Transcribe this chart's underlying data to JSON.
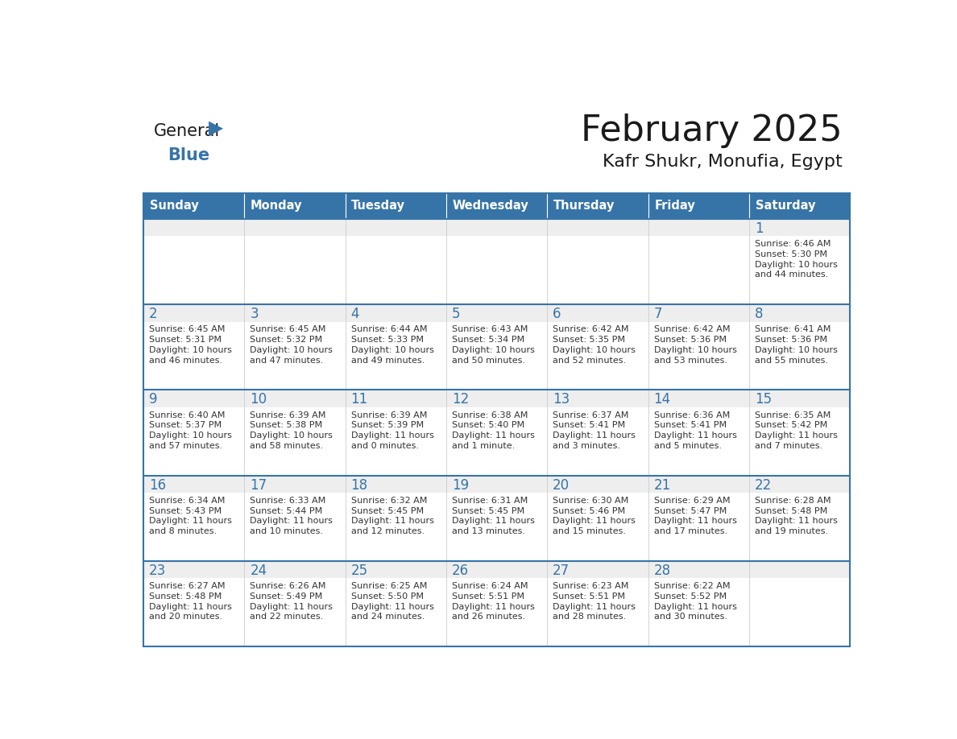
{
  "title": "February 2025",
  "subtitle": "Kafr Shukr, Monufia, Egypt",
  "header_color": "#3674A8",
  "header_text_color": "#FFFFFF",
  "cell_bg_white": "#FFFFFF",
  "cell_day_bg": "#EEEEEE",
  "grid_line_color": "#3674A8",
  "day_number_color": "#3674A8",
  "info_text_color": "#333333",
  "days_of_week": [
    "Sunday",
    "Monday",
    "Tuesday",
    "Wednesday",
    "Thursday",
    "Friday",
    "Saturday"
  ],
  "logo_general_color": "#1a1a1a",
  "logo_blue_color": "#3674A8",
  "calendar_data": [
    [
      null,
      null,
      null,
      null,
      null,
      null,
      {
        "day": "1",
        "sunrise": "6:46 AM",
        "sunset": "5:30 PM",
        "daylight": "10 hours",
        "daylight2": "and 44 minutes."
      }
    ],
    [
      {
        "day": "2",
        "sunrise": "6:45 AM",
        "sunset": "5:31 PM",
        "daylight": "10 hours",
        "daylight2": "and 46 minutes."
      },
      {
        "day": "3",
        "sunrise": "6:45 AM",
        "sunset": "5:32 PM",
        "daylight": "10 hours",
        "daylight2": "and 47 minutes."
      },
      {
        "day": "4",
        "sunrise": "6:44 AM",
        "sunset": "5:33 PM",
        "daylight": "10 hours",
        "daylight2": "and 49 minutes."
      },
      {
        "day": "5",
        "sunrise": "6:43 AM",
        "sunset": "5:34 PM",
        "daylight": "10 hours",
        "daylight2": "and 50 minutes."
      },
      {
        "day": "6",
        "sunrise": "6:42 AM",
        "sunset": "5:35 PM",
        "daylight": "10 hours",
        "daylight2": "and 52 minutes."
      },
      {
        "day": "7",
        "sunrise": "6:42 AM",
        "sunset": "5:36 PM",
        "daylight": "10 hours",
        "daylight2": "and 53 minutes."
      },
      {
        "day": "8",
        "sunrise": "6:41 AM",
        "sunset": "5:36 PM",
        "daylight": "10 hours",
        "daylight2": "and 55 minutes."
      }
    ],
    [
      {
        "day": "9",
        "sunrise": "6:40 AM",
        "sunset": "5:37 PM",
        "daylight": "10 hours",
        "daylight2": "and 57 minutes."
      },
      {
        "day": "10",
        "sunrise": "6:39 AM",
        "sunset": "5:38 PM",
        "daylight": "10 hours",
        "daylight2": "and 58 minutes."
      },
      {
        "day": "11",
        "sunrise": "6:39 AM",
        "sunset": "5:39 PM",
        "daylight": "11 hours",
        "daylight2": "and 0 minutes."
      },
      {
        "day": "12",
        "sunrise": "6:38 AM",
        "sunset": "5:40 PM",
        "daylight": "11 hours",
        "daylight2": "and 1 minute."
      },
      {
        "day": "13",
        "sunrise": "6:37 AM",
        "sunset": "5:41 PM",
        "daylight": "11 hours",
        "daylight2": "and 3 minutes."
      },
      {
        "day": "14",
        "sunrise": "6:36 AM",
        "sunset": "5:41 PM",
        "daylight": "11 hours",
        "daylight2": "and 5 minutes."
      },
      {
        "day": "15",
        "sunrise": "6:35 AM",
        "sunset": "5:42 PM",
        "daylight": "11 hours",
        "daylight2": "and 7 minutes."
      }
    ],
    [
      {
        "day": "16",
        "sunrise": "6:34 AM",
        "sunset": "5:43 PM",
        "daylight": "11 hours",
        "daylight2": "and 8 minutes."
      },
      {
        "day": "17",
        "sunrise": "6:33 AM",
        "sunset": "5:44 PM",
        "daylight": "11 hours",
        "daylight2": "and 10 minutes."
      },
      {
        "day": "18",
        "sunrise": "6:32 AM",
        "sunset": "5:45 PM",
        "daylight": "11 hours",
        "daylight2": "and 12 minutes."
      },
      {
        "day": "19",
        "sunrise": "6:31 AM",
        "sunset": "5:45 PM",
        "daylight": "11 hours",
        "daylight2": "and 13 minutes."
      },
      {
        "day": "20",
        "sunrise": "6:30 AM",
        "sunset": "5:46 PM",
        "daylight": "11 hours",
        "daylight2": "and 15 minutes."
      },
      {
        "day": "21",
        "sunrise": "6:29 AM",
        "sunset": "5:47 PM",
        "daylight": "11 hours",
        "daylight2": "and 17 minutes."
      },
      {
        "day": "22",
        "sunrise": "6:28 AM",
        "sunset": "5:48 PM",
        "daylight": "11 hours",
        "daylight2": "and 19 minutes."
      }
    ],
    [
      {
        "day": "23",
        "sunrise": "6:27 AM",
        "sunset": "5:48 PM",
        "daylight": "11 hours",
        "daylight2": "and 20 minutes."
      },
      {
        "day": "24",
        "sunrise": "6:26 AM",
        "sunset": "5:49 PM",
        "daylight": "11 hours",
        "daylight2": "and 22 minutes."
      },
      {
        "day": "25",
        "sunrise": "6:25 AM",
        "sunset": "5:50 PM",
        "daylight": "11 hours",
        "daylight2": "and 24 minutes."
      },
      {
        "day": "26",
        "sunrise": "6:24 AM",
        "sunset": "5:51 PM",
        "daylight": "11 hours",
        "daylight2": "and 26 minutes."
      },
      {
        "day": "27",
        "sunrise": "6:23 AM",
        "sunset": "5:51 PM",
        "daylight": "11 hours",
        "daylight2": "and 28 minutes."
      },
      {
        "day": "28",
        "sunrise": "6:22 AM",
        "sunset": "5:52 PM",
        "daylight": "11 hours",
        "daylight2": "and 30 minutes."
      },
      null
    ]
  ]
}
